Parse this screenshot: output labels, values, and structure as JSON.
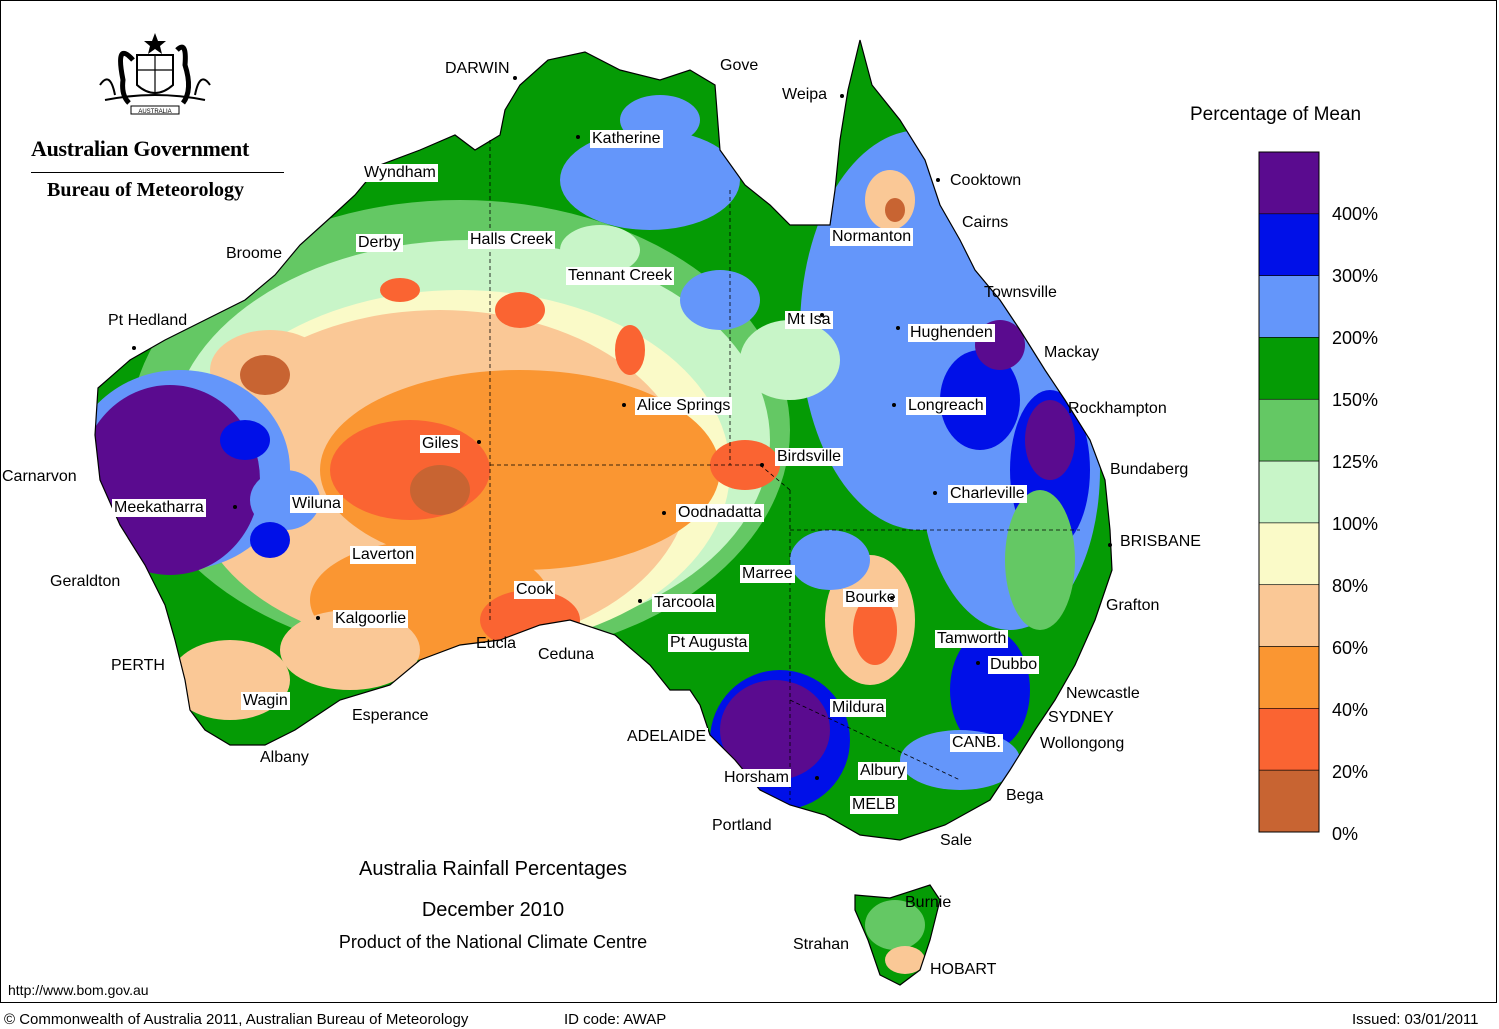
{
  "header": {
    "agency": "Australian Government",
    "bureau": "Bureau of Meteorology",
    "emblem_icon": "commonwealth-coat-of-arms-icon",
    "emblem_text": "AUSTRALIA"
  },
  "titles": {
    "line1": "Australia Rainfall Percentages",
    "line2": "December 2010",
    "line3": "Product of the National Climate Centre"
  },
  "legend": {
    "title": "Percentage of Mean",
    "ticks": [
      "400%",
      "300%",
      "200%",
      "150%",
      "125%",
      "100%",
      "80%",
      "60%",
      "40%",
      "20%",
      "0%"
    ],
    "colors": [
      "#5a0b8f",
      "#0010e8",
      "#6496fa",
      "#059b05",
      "#64c864",
      "#c8f5c8",
      "#fafac8",
      "#fac896",
      "#fa9632",
      "#fa6432",
      "#c86432"
    ]
  },
  "places": [
    {
      "name": "DARWIN"
    },
    {
      "name": "Gove"
    },
    {
      "name": "Weipa"
    },
    {
      "name": "Katherine"
    },
    {
      "name": "Wyndham"
    },
    {
      "name": "Cooktown"
    },
    {
      "name": "Cairns"
    },
    {
      "name": "Derby"
    },
    {
      "name": "Halls Creek"
    },
    {
      "name": "Normanton"
    },
    {
      "name": "Broome"
    },
    {
      "name": "Tennant Creek"
    },
    {
      "name": "Townsville"
    },
    {
      "name": "Pt Hedland"
    },
    {
      "name": "Mt Isa"
    },
    {
      "name": "Hughenden"
    },
    {
      "name": "Mackay"
    },
    {
      "name": "Alice Springs"
    },
    {
      "name": "Longreach"
    },
    {
      "name": "Rockhampton"
    },
    {
      "name": "Giles"
    },
    {
      "name": "Birdsville"
    },
    {
      "name": "Bundaberg"
    },
    {
      "name": "Carnarvon"
    },
    {
      "name": "Meekatharra"
    },
    {
      "name": "Wiluna"
    },
    {
      "name": "Charleville"
    },
    {
      "name": "Oodnadatta"
    },
    {
      "name": "BRISBANE"
    },
    {
      "name": "Laverton"
    },
    {
      "name": "Marree"
    },
    {
      "name": "Geraldton"
    },
    {
      "name": "Cook"
    },
    {
      "name": "Tarcoola"
    },
    {
      "name": "Bourke"
    },
    {
      "name": "Grafton"
    },
    {
      "name": "Kalgoorlie"
    },
    {
      "name": "Tamworth"
    },
    {
      "name": "Eucla"
    },
    {
      "name": "Pt Augusta"
    },
    {
      "name": "Ceduna"
    },
    {
      "name": "Dubbo"
    },
    {
      "name": "PERTH"
    },
    {
      "name": "Newcastle"
    },
    {
      "name": "Wagin"
    },
    {
      "name": "Mildura"
    },
    {
      "name": "SYDNEY"
    },
    {
      "name": "Esperance"
    },
    {
      "name": "ADELAIDE"
    },
    {
      "name": "CANB."
    },
    {
      "name": "Wollongong"
    },
    {
      "name": "Albany"
    },
    {
      "name": "Albury"
    },
    {
      "name": "Horsham"
    },
    {
      "name": "Bega"
    },
    {
      "name": "MELB"
    },
    {
      "name": "Portland"
    },
    {
      "name": "Sale"
    },
    {
      "name": "Burnie"
    },
    {
      "name": "Strahan"
    },
    {
      "name": "HOBART"
    }
  ],
  "footer": {
    "url": "http://www.bom.gov.au",
    "copyright": "© Commonwealth of Australia 2011, Australian Bureau of Meteorology",
    "id_code": "ID code: AWAP",
    "issued": "Issued: 03/01/2011"
  }
}
